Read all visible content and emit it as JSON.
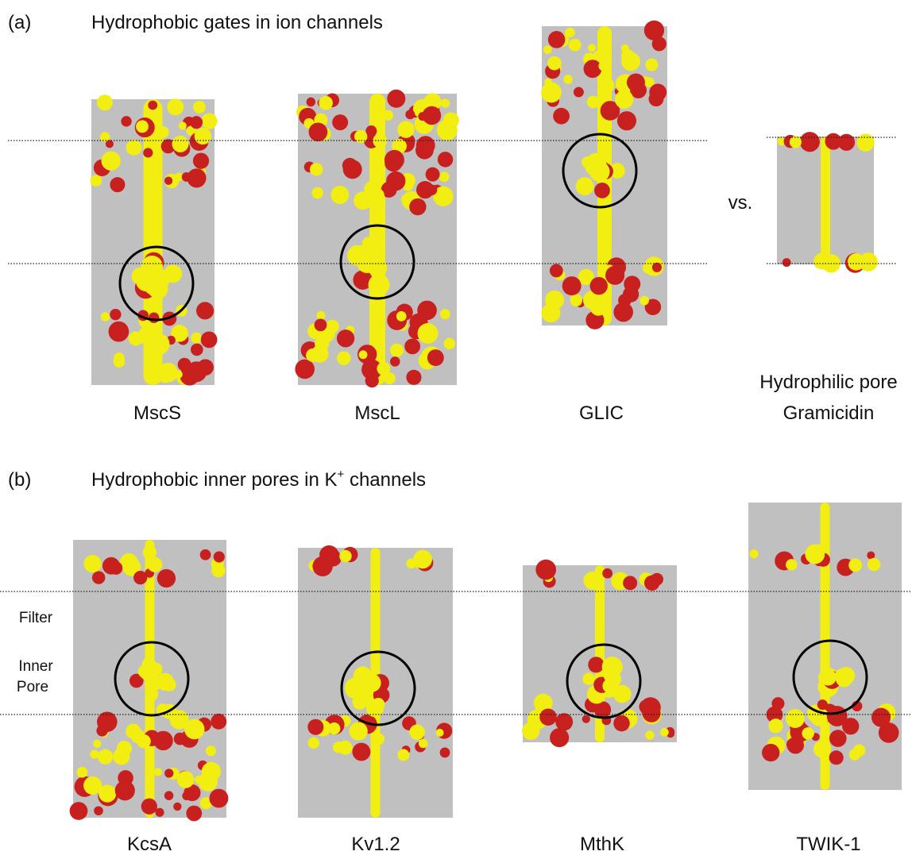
{
  "panel_a": {
    "label": "(a)",
    "title": "Hydrophobic gates in ion channels",
    "vs": "vs.",
    "channels": [
      "MscS",
      "MscL",
      "GLIC"
    ],
    "comparison": {
      "label": "Hydrophilic pore",
      "name": "Gramicidin"
    }
  },
  "panel_b": {
    "label": "(b)",
    "title": {
      "text": "Hydrophobic inner pores in K",
      "superscript": "+",
      "suffix": " channels"
    },
    "side_labels": {
      "filter": "Filter",
      "inner": "Inner",
      "pore": "Pore"
    },
    "channels": [
      "KcsA",
      "Kv1.2",
      "MthK",
      "TWIK-1"
    ]
  }
}
